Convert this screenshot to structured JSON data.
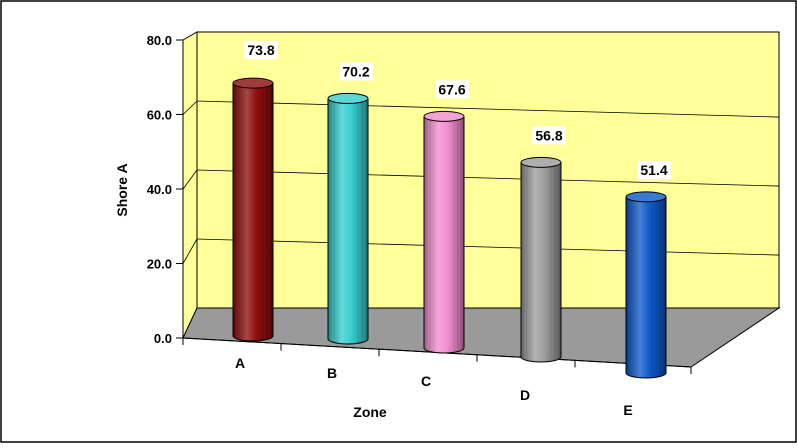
{
  "chart_data": {
    "type": "bar",
    "style": "3d-cylinder",
    "categories": [
      "A",
      "B",
      "C",
      "D",
      "E"
    ],
    "values": [
      73.8,
      70.2,
      67.6,
      56.8,
      51.4
    ],
    "value_labels": [
      "73.8",
      "70.2",
      "67.6",
      "56.8",
      "51.4"
    ],
    "bar_colors": [
      "#8b0a0a",
      "#33cccc",
      "#f08ccc",
      "#9a9a9a",
      "#0a57c8"
    ],
    "xlabel": "Zone",
    "ylabel": "Shore A",
    "ylim": [
      0,
      80
    ],
    "yticks": [
      "0.0",
      "20.0",
      "40.0",
      "60.0",
      "80.0"
    ],
    "grid": true,
    "legend": "none",
    "wall_color": "#ffff99",
    "floor_color": "#9a9a9a"
  }
}
